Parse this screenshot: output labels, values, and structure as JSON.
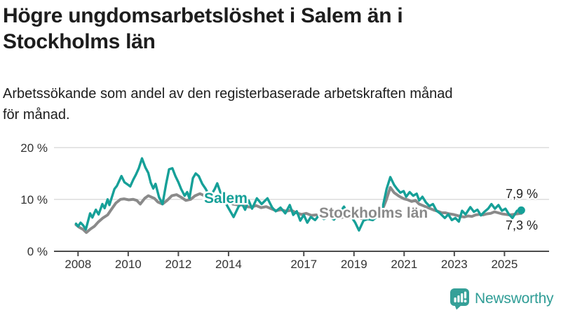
{
  "title": {
    "lines": [
      "Högre ungdomsarbetslöshet i Salem än i",
      "Stockholms län"
    ]
  },
  "subtitle": {
    "lines": [
      "Arbetssökande som andel av den registerbaserade arbetskraften månad",
      "för månad."
    ]
  },
  "branding": {
    "name": "Newsworthy",
    "icon": "newsworthy-speech-bubble-bar-chart-icon",
    "wordmark_color": "#2f9d96",
    "icon_color": "#35a098"
  },
  "chart_data": {
    "type": "line",
    "title": "Högre ungdomsarbetslöshet i Salem än i Stockholms län",
    "subtitle": "Arbetssökande som andel av den registerbaserade arbetskraften månad för månad.",
    "unit": "%",
    "grid": "horizontal",
    "xlim": [
      2007.9,
      2025.9
    ],
    "ylim": [
      0,
      21
    ],
    "x_ticks": [
      2008,
      2010,
      2012,
      2014,
      2017,
      2019,
      2021,
      2023,
      2025
    ],
    "x_tick_labels": [
      "2008",
      "2010",
      "2012",
      "2014",
      "2017",
      "2019",
      "2021",
      "2023",
      "2025"
    ],
    "y_ticks": [
      0,
      10,
      20
    ],
    "y_tick_labels": [
      "0 %",
      "10 %",
      "20 %"
    ],
    "colors": {
      "salem": "#16a098",
      "stockholm": "#8a8a8a",
      "grid": "#d9d9d9",
      "axis": "#4c4c4c"
    },
    "series": [
      {
        "name": "Stockholms län",
        "color": "#8a8a8a",
        "end_label": "7,3 %",
        "end_value": 7.3,
        "points": [
          [
            2007.92,
            5.1
          ],
          [
            2008.05,
            4.6
          ],
          [
            2008.2,
            4.2
          ],
          [
            2008.33,
            3.6
          ],
          [
            2008.5,
            4.3
          ],
          [
            2008.65,
            4.8
          ],
          [
            2008.8,
            5.6
          ],
          [
            2008.99,
            6.4
          ],
          [
            2009.18,
            7.0
          ],
          [
            2009.32,
            8.0
          ],
          [
            2009.51,
            9.3
          ],
          [
            2009.69,
            10.0
          ],
          [
            2009.83,
            10.1
          ],
          [
            2010.02,
            9.9
          ],
          [
            2010.2,
            10.0
          ],
          [
            2010.34,
            9.8
          ],
          [
            2010.48,
            9.1
          ],
          [
            2010.66,
            10.2
          ],
          [
            2010.8,
            10.7
          ],
          [
            2010.94,
            10.4
          ],
          [
            2011.04,
            10.2
          ],
          [
            2011.18,
            9.5
          ],
          [
            2011.37,
            9.1
          ],
          [
            2011.55,
            9.8
          ],
          [
            2011.74,
            10.7
          ],
          [
            2011.93,
            10.9
          ],
          [
            2012.11,
            10.4
          ],
          [
            2012.3,
            9.8
          ],
          [
            2012.49,
            10.0
          ],
          [
            2012.67,
            10.7
          ],
          [
            2012.86,
            11.1
          ],
          [
            2013.04,
            10.7
          ],
          [
            2013.23,
            10.0
          ],
          [
            2013.42,
            10.2
          ],
          [
            2013.6,
            10.0
          ],
          [
            2013.75,
            9.9
          ],
          [
            2013.89,
            9.8
          ],
          [
            2014.17,
            9.1
          ],
          [
            2014.4,
            8.9
          ],
          [
            2014.55,
            8.9
          ],
          [
            2014.7,
            8.6
          ],
          [
            2014.9,
            8.5
          ],
          [
            2015.1,
            8.8
          ],
          [
            2015.3,
            8.4
          ],
          [
            2015.5,
            8.6
          ],
          [
            2015.7,
            8.2
          ],
          [
            2015.9,
            7.8
          ],
          [
            2016.1,
            8.0
          ],
          [
            2016.3,
            7.7
          ],
          [
            2016.5,
            7.9
          ],
          [
            2016.7,
            7.4
          ],
          [
            2016.9,
            7.1
          ],
          [
            2017.1,
            7.3
          ],
          [
            2017.3,
            6.9
          ],
          [
            2017.5,
            7.0
          ],
          [
            2017.7,
            6.7
          ],
          [
            2017.9,
            6.9
          ],
          [
            2018.1,
            6.6
          ],
          [
            2018.3,
            6.8
          ],
          [
            2018.5,
            6.5
          ],
          [
            2018.7,
            6.7
          ],
          [
            2018.9,
            6.4
          ],
          [
            2019.1,
            6.6
          ],
          [
            2019.3,
            6.3
          ],
          [
            2019.5,
            6.5
          ],
          [
            2019.7,
            6.4
          ],
          [
            2019.9,
            6.7
          ],
          [
            2020.1,
            7.6
          ],
          [
            2020.28,
            9.8
          ],
          [
            2020.45,
            12.3
          ],
          [
            2020.6,
            11.3
          ],
          [
            2020.8,
            10.6
          ],
          [
            2021.0,
            10.1
          ],
          [
            2021.15,
            9.9
          ],
          [
            2021.3,
            9.6
          ],
          [
            2021.45,
            9.8
          ],
          [
            2021.6,
            9.1
          ],
          [
            2021.75,
            8.8
          ],
          [
            2021.9,
            8.5
          ],
          [
            2022.05,
            8.2
          ],
          [
            2022.2,
            7.9
          ],
          [
            2022.35,
            7.7
          ],
          [
            2022.5,
            7.4
          ],
          [
            2022.65,
            7.4
          ],
          [
            2022.8,
            7.2
          ],
          [
            2022.95,
            7.1
          ],
          [
            2023.1,
            6.9
          ],
          [
            2023.25,
            6.7
          ],
          [
            2023.4,
            6.6
          ],
          [
            2023.55,
            6.8
          ],
          [
            2023.7,
            6.7
          ],
          [
            2023.85,
            7.0
          ],
          [
            2024.0,
            7.1
          ],
          [
            2024.15,
            7.0
          ],
          [
            2024.3,
            7.2
          ],
          [
            2024.45,
            7.3
          ],
          [
            2024.6,
            7.6
          ],
          [
            2024.75,
            7.4
          ],
          [
            2024.9,
            7.2
          ],
          [
            2025.05,
            7.1
          ],
          [
            2025.2,
            7.0
          ],
          [
            2025.35,
            7.1
          ],
          [
            2025.5,
            7.2
          ],
          [
            2025.67,
            7.3
          ]
        ]
      },
      {
        "name": "Salem",
        "color": "#16a098",
        "end_label": "7,9 %",
        "end_value": 7.9,
        "points": [
          [
            2007.92,
            5.3
          ],
          [
            2008.0,
            4.8
          ],
          [
            2008.1,
            5.5
          ],
          [
            2008.2,
            5.0
          ],
          [
            2008.31,
            4.2
          ],
          [
            2008.48,
            7.3
          ],
          [
            2008.57,
            6.5
          ],
          [
            2008.71,
            8.0
          ],
          [
            2008.82,
            7.1
          ],
          [
            2008.97,
            9.1
          ],
          [
            2009.06,
            8.3
          ],
          [
            2009.18,
            10.0
          ],
          [
            2009.25,
            8.9
          ],
          [
            2009.45,
            12.0
          ],
          [
            2009.55,
            12.6
          ],
          [
            2009.73,
            14.5
          ],
          [
            2009.85,
            13.3
          ],
          [
            2010.0,
            12.8
          ],
          [
            2010.08,
            12.5
          ],
          [
            2010.2,
            13.8
          ],
          [
            2010.31,
            14.8
          ],
          [
            2010.42,
            16.0
          ],
          [
            2010.55,
            17.9
          ],
          [
            2010.68,
            16.2
          ],
          [
            2010.8,
            15.1
          ],
          [
            2010.9,
            13.2
          ],
          [
            2011.0,
            12.1
          ],
          [
            2011.09,
            13.0
          ],
          [
            2011.23,
            10.4
          ],
          [
            2011.37,
            9.1
          ],
          [
            2011.51,
            13.0
          ],
          [
            2011.63,
            15.8
          ],
          [
            2011.76,
            16.0
          ],
          [
            2011.88,
            14.5
          ],
          [
            2012.0,
            13.3
          ],
          [
            2012.11,
            12.0
          ],
          [
            2012.25,
            10.7
          ],
          [
            2012.35,
            11.4
          ],
          [
            2012.44,
            10.2
          ],
          [
            2012.58,
            14.1
          ],
          [
            2012.69,
            15.0
          ],
          [
            2012.81,
            14.5
          ],
          [
            2012.95,
            13.0
          ],
          [
            2013.09,
            12.0
          ],
          [
            2013.23,
            10.7
          ],
          [
            2013.34,
            11.1
          ],
          [
            2013.45,
            12.0
          ],
          [
            2013.55,
            13.1
          ],
          [
            2013.7,
            11.0
          ],
          [
            2013.85,
            9.6
          ],
          [
            2014.0,
            8.3
          ],
          [
            2014.2,
            6.6
          ],
          [
            2014.4,
            8.6
          ],
          [
            2014.52,
            9.3
          ],
          [
            2014.66,
            8.0
          ],
          [
            2014.8,
            9.8
          ],
          [
            2014.94,
            8.2
          ],
          [
            2015.13,
            10.2
          ],
          [
            2015.32,
            9.1
          ],
          [
            2015.55,
            10.2
          ],
          [
            2015.74,
            8.4
          ],
          [
            2015.88,
            7.7
          ],
          [
            2016.07,
            8.4
          ],
          [
            2016.26,
            7.3
          ],
          [
            2016.44,
            8.9
          ],
          [
            2016.58,
            7.0
          ],
          [
            2016.72,
            7.7
          ],
          [
            2016.86,
            5.9
          ],
          [
            2017.0,
            7.0
          ],
          [
            2017.14,
            5.5
          ],
          [
            2017.28,
            6.6
          ],
          [
            2017.45,
            6.0
          ],
          [
            2017.6,
            6.9
          ],
          [
            2017.8,
            6.2
          ],
          [
            2018.0,
            6.7
          ],
          [
            2018.2,
            6.1
          ],
          [
            2018.4,
            7.2
          ],
          [
            2018.6,
            8.6
          ],
          [
            2018.75,
            7.3
          ],
          [
            2018.9,
            6.6
          ],
          [
            2019.05,
            5.5
          ],
          [
            2019.2,
            4.0
          ],
          [
            2019.38,
            5.9
          ],
          [
            2019.55,
            6.2
          ],
          [
            2019.75,
            6.0
          ],
          [
            2019.95,
            6.8
          ],
          [
            2020.15,
            8.6
          ],
          [
            2020.3,
            12.0
          ],
          [
            2020.45,
            14.3
          ],
          [
            2020.6,
            12.8
          ],
          [
            2020.72,
            12.0
          ],
          [
            2020.85,
            11.3
          ],
          [
            2020.98,
            11.6
          ],
          [
            2021.08,
            10.5
          ],
          [
            2021.22,
            11.4
          ],
          [
            2021.36,
            10.7
          ],
          [
            2021.5,
            11.1
          ],
          [
            2021.6,
            9.8
          ],
          [
            2021.73,
            10.5
          ],
          [
            2021.87,
            9.4
          ],
          [
            2022.01,
            8.7
          ],
          [
            2022.15,
            9.1
          ],
          [
            2022.29,
            7.8
          ],
          [
            2022.43,
            7.3
          ],
          [
            2022.62,
            6.4
          ],
          [
            2022.76,
            7.1
          ],
          [
            2022.9,
            6.0
          ],
          [
            2023.04,
            6.4
          ],
          [
            2023.18,
            5.7
          ],
          [
            2023.31,
            7.8
          ],
          [
            2023.45,
            7.1
          ],
          [
            2023.64,
            8.5
          ],
          [
            2023.78,
            7.6
          ],
          [
            2023.92,
            8.0
          ],
          [
            2024.06,
            6.9
          ],
          [
            2024.2,
            7.6
          ],
          [
            2024.35,
            8.2
          ],
          [
            2024.48,
            9.1
          ],
          [
            2024.62,
            8.2
          ],
          [
            2024.76,
            8.9
          ],
          [
            2024.9,
            7.8
          ],
          [
            2025.04,
            8.2
          ],
          [
            2025.18,
            7.1
          ],
          [
            2025.32,
            6.4
          ],
          [
            2025.5,
            7.8
          ],
          [
            2025.67,
            7.9
          ]
        ]
      }
    ]
  }
}
